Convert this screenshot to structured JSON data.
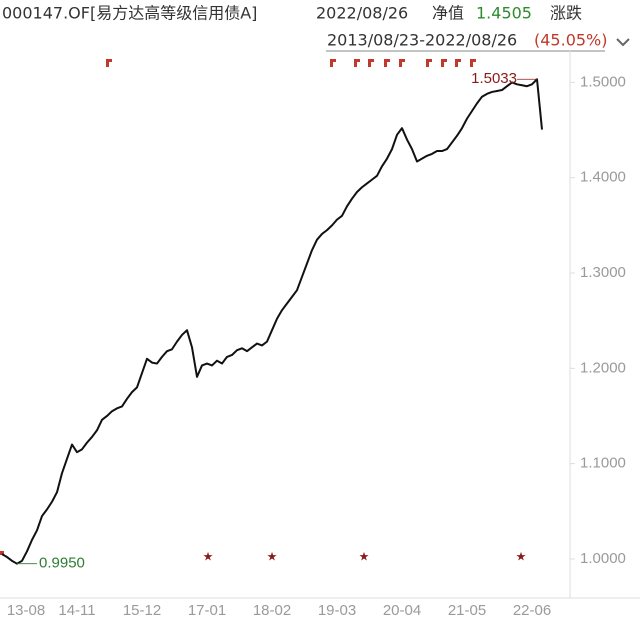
{
  "header": {
    "code": "000147.OF[易方达高等级信用债A]",
    "date": "2022/08/26",
    "nav_label": "净值",
    "nav": "1.4505",
    "change_label": "涨跌",
    "range": "2013/08/23-2022/08/26",
    "change": "(45.05%)"
  },
  "chart_data": {
    "type": "line",
    "color": "#111111",
    "x": [
      "13-08",
      "13-09",
      "13-10",
      "13-11",
      "13-12",
      "14-01",
      "14-02",
      "14-03",
      "14-04",
      "14-05",
      "14-06",
      "14-07",
      "14-08",
      "14-09",
      "14-10",
      "14-11",
      "14-12",
      "15-01",
      "15-02",
      "15-03",
      "15-04",
      "15-05",
      "15-06",
      "15-07",
      "15-08",
      "15-09",
      "15-10",
      "15-11",
      "15-12",
      "16-01",
      "16-02",
      "16-03",
      "16-04",
      "16-05",
      "16-06",
      "16-07",
      "16-08",
      "16-09",
      "16-10",
      "16-11",
      "16-12",
      "17-01",
      "17-02",
      "17-03",
      "17-04",
      "17-05",
      "17-06",
      "17-07",
      "17-08",
      "17-09",
      "17-10",
      "17-11",
      "17-12",
      "18-01",
      "18-02",
      "18-03",
      "18-04",
      "18-05",
      "18-06",
      "18-07",
      "18-08",
      "18-09",
      "18-10",
      "18-11",
      "18-12",
      "19-01",
      "19-02",
      "19-03",
      "19-04",
      "19-05",
      "19-06",
      "19-07",
      "19-08",
      "19-09",
      "19-10",
      "19-11",
      "19-12",
      "20-01",
      "20-02",
      "20-03",
      "20-04",
      "20-05",
      "20-06",
      "20-07",
      "20-08",
      "20-09",
      "20-10",
      "20-11",
      "20-12",
      "21-01",
      "21-02",
      "21-03",
      "21-04",
      "21-05",
      "21-06",
      "21-07",
      "21-08",
      "21-09",
      "21-10",
      "21-11",
      "21-12",
      "22-01",
      "22-02",
      "22-03",
      "22-04",
      "22-05",
      "22-06",
      "22-07",
      "22-08"
    ],
    "values": [
      1.005,
      1.002,
      0.998,
      0.995,
      0.998,
      1.008,
      1.02,
      1.03,
      1.045,
      1.052,
      1.06,
      1.07,
      1.09,
      1.105,
      1.12,
      1.112,
      1.115,
      1.122,
      1.128,
      1.135,
      1.146,
      1.15,
      1.155,
      1.158,
      1.16,
      1.168,
      1.175,
      1.18,
      1.195,
      1.21,
      1.206,
      1.205,
      1.212,
      1.218,
      1.22,
      1.228,
      1.235,
      1.24,
      1.222,
      1.191,
      1.203,
      1.205,
      1.203,
      1.208,
      1.205,
      1.212,
      1.214,
      1.219,
      1.221,
      1.218,
      1.222,
      1.226,
      1.224,
      1.228,
      1.24,
      1.252,
      1.261,
      1.268,
      1.275,
      1.282,
      1.296,
      1.31,
      1.324,
      1.335,
      1.341,
      1.345,
      1.35,
      1.356,
      1.36,
      1.37,
      1.378,
      1.385,
      1.39,
      1.394,
      1.398,
      1.402,
      1.412,
      1.42,
      1.43,
      1.445,
      1.452,
      1.44,
      1.43,
      1.417,
      1.42,
      1.423,
      1.425,
      1.428,
      1.428,
      1.43,
      1.437,
      1.444,
      1.452,
      1.462,
      1.47,
      1.478,
      1.485,
      1.488,
      1.49,
      1.491,
      1.492,
      1.496,
      1.5,
      1.498,
      1.497,
      1.496,
      1.498,
      1.5033,
      1.4505
    ],
    "ylim": [
      0.959,
      1.534
    ],
    "yticks": [
      {
        "value": 1.0,
        "label": "1.0000"
      },
      {
        "value": 1.1,
        "label": "1.1000"
      },
      {
        "value": 1.2,
        "label": "1.2000"
      },
      {
        "value": 1.3,
        "label": "1.3000"
      },
      {
        "value": 1.4,
        "label": "1.4000"
      },
      {
        "value": 1.5,
        "label": "1.5000"
      }
    ],
    "xticks": [
      "13-08",
      "14-11",
      "15-12",
      "17-01",
      "18-02",
      "19-03",
      "20-04",
      "21-05",
      "22-06"
    ],
    "annotations": [
      {
        "label": "1.5033",
        "value": 1.5033,
        "x": "22-07",
        "color": "#8b1a1a"
      },
      {
        "label": "0.9950",
        "value": 0.995,
        "x": "13-11",
        "color": "#2e7d32"
      }
    ]
  }
}
